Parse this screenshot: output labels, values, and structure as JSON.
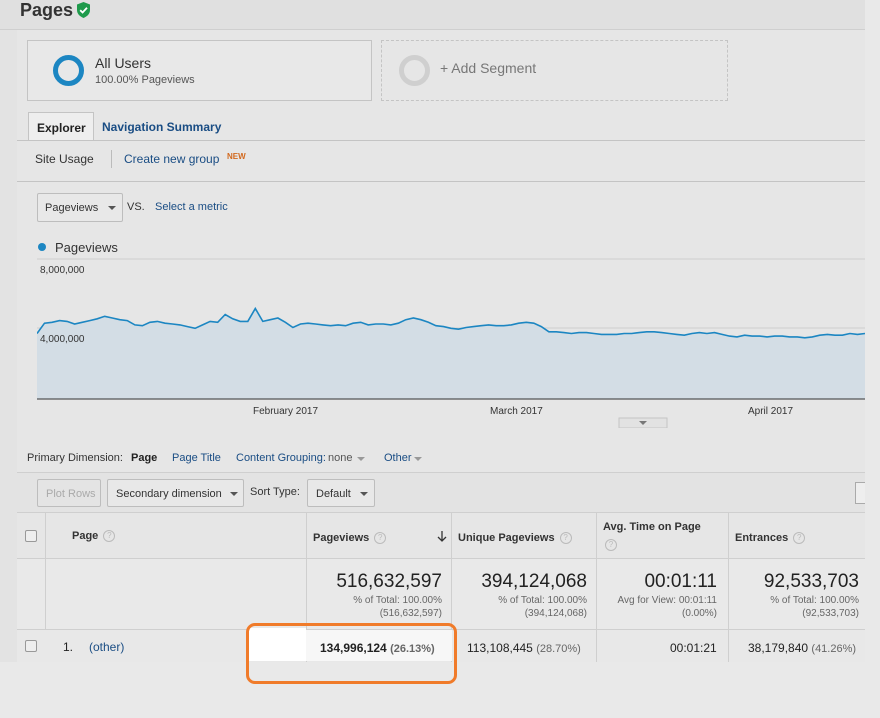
{
  "page": {
    "title": "Pages"
  },
  "segments": {
    "primary": {
      "name": "All Users",
      "sub": "100.00% Pageviews"
    },
    "add": "+ Add Segment"
  },
  "tabs": {
    "explorer": "Explorer",
    "navigation": "Navigation Summary"
  },
  "subnav": {
    "site_usage": "Site Usage",
    "create_group": "Create new group",
    "new_badge": "NEW"
  },
  "metric": {
    "selected": "Pageviews",
    "vs": "VS.",
    "select_metric": "Select a metric"
  },
  "chart_data": {
    "type": "area",
    "series": [
      {
        "name": "Pageviews",
        "color": "#1c86c2",
        "values": [
          3800000,
          4400000,
          4450000,
          4550000,
          4500000,
          4350000,
          4450000,
          4550000,
          4650000,
          4800000,
          4700000,
          4600000,
          4550000,
          4300000,
          4250000,
          4450000,
          4500000,
          4400000,
          4350000,
          4300000,
          4200000,
          4100000,
          4300000,
          4500000,
          4450000,
          4900000,
          4650000,
          4500000,
          4500000,
          5250000,
          4500000,
          4600000,
          4700000,
          4450000,
          4150000,
          4350000,
          4400000,
          4350000,
          4300000,
          4250000,
          4300000,
          4250000,
          4400000,
          4450000,
          4300000,
          4350000,
          4350000,
          4300000,
          4400000,
          4600000,
          4700000,
          4600000,
          4450000,
          4250000,
          4200000,
          4100000,
          4050000,
          4150000,
          4200000,
          4250000,
          4300000,
          4250000,
          4250000,
          4300000,
          4400000,
          4450000,
          4400000,
          4200000,
          3900000,
          3900000,
          3850000,
          3800000,
          3850000,
          3850000,
          3800000,
          3750000,
          3750000,
          3750000,
          3800000,
          3800000,
          3850000,
          3900000,
          3900000,
          3850000,
          3800000,
          3750000,
          3700000,
          3800000,
          3850000,
          3800000,
          3850000,
          3750000,
          3650000,
          3600000,
          3700000,
          3650000,
          3650000,
          3600000,
          3650000,
          3650000,
          3600000,
          3600000,
          3550000,
          3600000,
          3700000,
          3750000,
          3700000,
          3700000,
          3800000,
          3750000,
          3800000
        ]
      }
    ],
    "x_ticks": [
      "February 2017",
      "March 2017",
      "April 2017"
    ],
    "y_ticks": [
      "8,000,000",
      "4,000,000"
    ],
    "ylim": [
      0,
      8000000
    ],
    "grid": true
  },
  "dimensions": {
    "label": "Primary Dimension:",
    "page": "Page",
    "page_title": "Page Title",
    "content_grouping": "Content Grouping:",
    "content_grouping_value": "none",
    "other": "Other"
  },
  "toolbar": {
    "plot_rows": "Plot Rows",
    "secondary": "Secondary dimension",
    "sort_label": "Sort Type:",
    "sort_value": "Default"
  },
  "table": {
    "headers": {
      "page": "Page",
      "pageviews": "Pageviews",
      "unique": "Unique Pageviews",
      "avg_time": "Avg. Time on Page",
      "entrances": "Entrances"
    },
    "summary": {
      "pageviews": {
        "value": "516,632,597",
        "line1": "% of Total: 100.00%",
        "line2": "(516,632,597)"
      },
      "unique": {
        "value": "394,124,068",
        "line1": "% of Total: 100.00%",
        "line2": "(394,124,068)"
      },
      "avg_time": {
        "value": "00:01:11",
        "line1": "Avg for View: 00:01:11",
        "line2": "(0.00%)"
      },
      "entrances": {
        "value": "92,533,703",
        "line1": "% of Total: 100.00%",
        "line2": "(92,533,703)"
      }
    },
    "rows": [
      {
        "index": "1.",
        "page": "(other)",
        "pageviews": "134,996,124",
        "pageviews_pct": "(26.13%)",
        "unique": "113,108,445",
        "unique_pct": "(28.70%)",
        "avg_time": "00:01:21",
        "entrances": "38,179,840",
        "entrances_pct": "(41.26%)"
      }
    ]
  },
  "colors": {
    "accent": "#1c86c2",
    "link": "#1a4d84",
    "highlight": "#f07b2a",
    "verified": "#1e9a4b"
  }
}
